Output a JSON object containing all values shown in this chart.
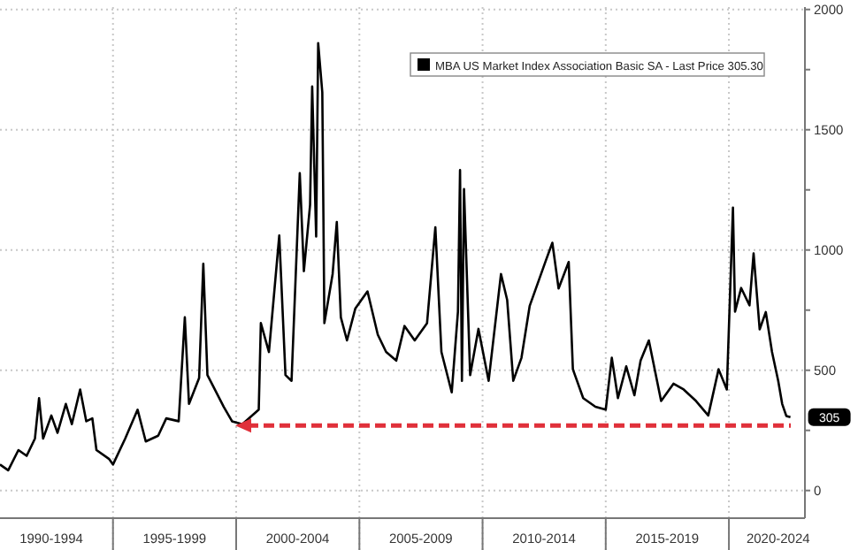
{
  "chart_data": {
    "type": "line",
    "xlim": [
      "1990-06",
      "2023-02"
    ],
    "ylim": [
      -115,
      2010
    ],
    "xticks": [
      {
        "value": "1992-07",
        "label": "1990-1994"
      },
      {
        "value": "1995",
        "label": null
      },
      {
        "value": "1997-07",
        "label": "1995-1999"
      },
      {
        "value": "2000",
        "label": null
      },
      {
        "value": "2002-07",
        "label": "2000-2004"
      },
      {
        "value": "2005",
        "label": null
      },
      {
        "value": "2007-07",
        "label": "2005-2009"
      },
      {
        "value": "2010",
        "label": null
      },
      {
        "value": "2012-07",
        "label": "2010-2014"
      },
      {
        "value": "2015",
        "label": null
      },
      {
        "value": "2017-07",
        "label": "2015-2019"
      },
      {
        "value": "2020",
        "label": null
      },
      {
        "value": "2022-01",
        "label": "2020-2024"
      }
    ],
    "yticks": [
      0,
      {
        "value": 250,
        "label": null
      },
      500,
      {
        "value": 750,
        "label": null
      },
      1000,
      {
        "value": 1250,
        "label": null
      },
      1500,
      {
        "value": 1750,
        "label": null
      },
      2000
    ],
    "grid": true,
    "legend": "top right",
    "series": [
      {
        "name": "MBA US Market Index Association Basic SA - Last Price 305.30",
        "color": "#000000",
        "x": [
          "1990-06",
          "1990-10",
          "1991-03",
          "1991-07",
          "1991-11",
          "1992-01",
          "1992-03",
          "1992-07",
          "1992-10",
          "1993-02",
          "1993-05",
          "1993-09",
          "1993-12",
          "1994-03",
          "1994-05",
          "1994-11",
          "1995-01",
          "1995-07",
          "1996-01",
          "1996-05",
          "1996-11",
          "1997-03",
          "1997-09",
          "1997-12",
          "1998-02",
          "1998-07",
          "1998-09",
          "1998-11",
          "1999-07",
          "1999-11",
          "2000-04",
          "2000-12",
          "2001-01",
          "2001-05",
          "2001-10",
          "2002-01",
          "2002-04",
          "2002-08",
          "2002-10",
          "2003-01",
          "2003-02",
          "2003-04",
          "2003-05",
          "2003-07",
          "2003-08",
          "2003-12",
          "2004-02",
          "2004-04",
          "2004-07",
          "2004-11",
          "2005-05",
          "2005-10",
          "2006-02",
          "2006-07",
          "2006-11",
          "2007-04",
          "2007-10",
          "2008-02",
          "2008-05",
          "2008-10",
          "2009-01",
          "2009-02",
          "2009-03",
          "2009-04",
          "2009-07",
          "2009-11",
          "2010-04",
          "2010-10",
          "2011-01",
          "2011-04",
          "2011-08",
          "2011-12",
          "2012-08",
          "2012-11",
          "2013-02",
          "2013-07",
          "2013-09",
          "2014-02",
          "2014-08",
          "2015-01",
          "2015-04",
          "2015-07",
          "2015-11",
          "2016-03",
          "2016-06",
          "2016-10",
          "2017-04",
          "2017-10",
          "2018-03",
          "2018-09",
          "2019-03",
          "2019-08",
          "2019-12",
          "2020-03",
          "2020-04",
          "2020-07",
          "2020-11",
          "2021-01",
          "2021-04",
          "2021-07",
          "2021-10",
          "2022-01",
          "2022-03",
          "2022-05",
          "2022-07"
        ],
        "values": [
          108,
          84,
          168,
          144,
          216,
          384,
          216,
          312,
          240,
          360,
          276,
          420,
          288,
          300,
          168,
          132,
          108,
          216,
          336,
          204,
          228,
          300,
          288,
          720,
          360,
          468,
          943,
          480,
          348,
          288,
          276,
          336,
          696,
          576,
          1060,
          480,
          456,
          1320,
          912,
          1188,
          1680,
          1056,
          1860,
          1656,
          696,
          900,
          1116,
          720,
          624,
          756,
          828,
          648,
          576,
          540,
          684,
          624,
          696,
          1094,
          576,
          408,
          744,
          1332,
          456,
          1253,
          480,
          672,
          456,
          900,
          792,
          456,
          552,
          768,
          960,
          1030,
          840,
          950,
          504,
          384,
          348,
          336,
          552,
          384,
          516,
          396,
          540,
          624,
          372,
          444,
          420,
          372,
          312,
          504,
          420,
          1176,
          744,
          842,
          770,
          986,
          670,
          742,
          576,
          456,
          360,
          310,
          305.3
        ]
      }
    ],
    "ref_lines": [
      {
        "axis": "y",
        "value": 270,
        "label": null,
        "color": "#e0303a",
        "line_style": "dashed"
      }
    ],
    "annotations": [
      {
        "text": "305",
        "x": "2022-07",
        "y": 305.3
      }
    ]
  }
}
